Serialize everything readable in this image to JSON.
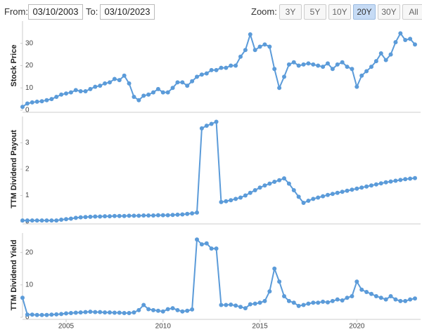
{
  "controls": {
    "from_label": "From:",
    "from_value": "03/10/2003",
    "to_label": "To:",
    "to_value": "03/10/2023",
    "zoom_label": "Zoom:",
    "zoom_buttons": [
      "3Y",
      "5Y",
      "10Y",
      "20Y",
      "30Y",
      "All"
    ],
    "zoom_active": 3
  },
  "chart_data": [
    {
      "type": "line",
      "ylabel": "Stock Price",
      "color": "#5b9bd9",
      "xlim": [
        2002.75,
        2023
      ],
      "ylim": [
        0,
        40
      ],
      "yticks": [
        0,
        10,
        20,
        30
      ],
      "x": [
        2002.75,
        2003,
        2003.25,
        2003.5,
        2003.75,
        2004,
        2004.25,
        2004.5,
        2004.75,
        2005,
        2005.25,
        2005.5,
        2005.75,
        2006,
        2006.25,
        2006.5,
        2006.75,
        2007,
        2007.25,
        2007.5,
        2007.75,
        2008,
        2008.25,
        2008.5,
        2008.75,
        2009,
        2009.25,
        2009.5,
        2009.75,
        2010,
        2010.25,
        2010.5,
        2010.75,
        2011,
        2011.25,
        2011.5,
        2011.75,
        2012,
        2012.25,
        2012.5,
        2012.75,
        2013,
        2013.25,
        2013.5,
        2013.75,
        2014,
        2014.25,
        2014.5,
        2014.75,
        2015,
        2015.25,
        2015.5,
        2015.75,
        2016,
        2016.25,
        2016.5,
        2016.75,
        2017,
        2017.25,
        2017.5,
        2017.75,
        2018,
        2018.25,
        2018.5,
        2018.75,
        2019,
        2019.25,
        2019.5,
        2019.75,
        2020,
        2020.25,
        2020.5,
        2020.75,
        2021,
        2021.25,
        2021.5,
        2021.75,
        2022,
        2022.25,
        2022.5,
        2022.75,
        2023
      ],
      "values": [
        1.5,
        3,
        3.5,
        3.8,
        4,
        4.5,
        5,
        6,
        7,
        7.5,
        8,
        9,
        8.5,
        8.5,
        9.5,
        10.5,
        11,
        12,
        12.5,
        14,
        13.5,
        15.5,
        12,
        6,
        4.5,
        6.5,
        7,
        8,
        9.5,
        8,
        8,
        10,
        12.5,
        12.5,
        11,
        13,
        15,
        16,
        16.5,
        18,
        18,
        19,
        19,
        20,
        20,
        24,
        27,
        34,
        27,
        28.5,
        29.5,
        28.5,
        18.5,
        10,
        15,
        20.5,
        21.5,
        20,
        20.5,
        21,
        20.5,
        20,
        19.5,
        21,
        18.5,
        20.5,
        21.5,
        19.5,
        18.5,
        10.5,
        15.5,
        17.5,
        19.5,
        22,
        25.5,
        22.5,
        25,
        30.5,
        34.5,
        31.5,
        32,
        29.5
      ]
    },
    {
      "type": "line",
      "ylabel": "TTM Dividend Payout",
      "color": "#5b9bd9",
      "xlim": [
        2002.75,
        2023
      ],
      "ylim": [
        0,
        4
      ],
      "yticks": [
        0,
        1,
        2,
        3
      ],
      "x": [
        2002.75,
        2003,
        2003.25,
        2003.5,
        2003.75,
        2004,
        2004.25,
        2004.5,
        2004.75,
        2005,
        2005.25,
        2005.5,
        2005.75,
        2006,
        2006.25,
        2006.5,
        2006.75,
        2007,
        2007.25,
        2007.5,
        2007.75,
        2008,
        2008.25,
        2008.5,
        2008.75,
        2009,
        2009.25,
        2009.5,
        2009.75,
        2010,
        2010.25,
        2010.5,
        2010.75,
        2011,
        2011.25,
        2011.5,
        2011.75,
        2012,
        2012.25,
        2012.5,
        2012.75,
        2013,
        2013.25,
        2013.5,
        2013.75,
        2014,
        2014.25,
        2014.5,
        2014.75,
        2015,
        2015.25,
        2015.5,
        2015.75,
        2016,
        2016.25,
        2016.5,
        2016.75,
        2017,
        2017.25,
        2017.5,
        2017.75,
        2018,
        2018.25,
        2018.5,
        2018.75,
        2019,
        2019.25,
        2019.5,
        2019.75,
        2020,
        2020.25,
        2020.5,
        2020.75,
        2021,
        2021.25,
        2021.5,
        2021.75,
        2022,
        2022.25,
        2022.5,
        2022.75,
        2023
      ],
      "values": [
        0.05,
        0.05,
        0.05,
        0.05,
        0.05,
        0.05,
        0.05,
        0.05,
        0.08,
        0.1,
        0.12,
        0.15,
        0.17,
        0.18,
        0.19,
        0.2,
        0.2,
        0.21,
        0.21,
        0.22,
        0.22,
        0.22,
        0.23,
        0.23,
        0.23,
        0.24,
        0.24,
        0.24,
        0.25,
        0.25,
        0.25,
        0.26,
        0.27,
        0.28,
        0.3,
        0.32,
        0.35,
        3.55,
        3.65,
        3.72,
        3.8,
        0.75,
        0.78,
        0.82,
        0.87,
        0.92,
        1.0,
        1.1,
        1.2,
        1.3,
        1.38,
        1.45,
        1.52,
        1.58,
        1.65,
        1.45,
        1.2,
        0.95,
        0.72,
        0.8,
        0.87,
        0.92,
        0.97,
        1.02,
        1.06,
        1.1,
        1.14,
        1.18,
        1.22,
        1.26,
        1.3,
        1.34,
        1.38,
        1.42,
        1.46,
        1.5,
        1.53,
        1.56,
        1.59,
        1.62,
        1.64,
        1.66
      ]
    },
    {
      "type": "line",
      "ylabel": "TTM Dividend Yield",
      "color": "#5b9bd9",
      "xlim": [
        2002.75,
        2023
      ],
      "ylim": [
        0,
        26
      ],
      "yticks": [
        0,
        10,
        20
      ],
      "xticks": [
        2005,
        2010,
        2015,
        2020
      ],
      "x": [
        2002.75,
        2003,
        2003.25,
        2003.5,
        2003.75,
        2004,
        2004.25,
        2004.5,
        2004.75,
        2005,
        2005.25,
        2005.5,
        2005.75,
        2006,
        2006.25,
        2006.5,
        2006.75,
        2007,
        2007.25,
        2007.5,
        2007.75,
        2008,
        2008.25,
        2008.5,
        2008.75,
        2009,
        2009.25,
        2009.5,
        2009.75,
        2010,
        2010.25,
        2010.5,
        2010.75,
        2011,
        2011.25,
        2011.5,
        2011.75,
        2012,
        2012.25,
        2012.5,
        2012.75,
        2013,
        2013.25,
        2013.5,
        2013.75,
        2014,
        2014.25,
        2014.5,
        2014.75,
        2015,
        2015.25,
        2015.5,
        2015.75,
        2016,
        2016.25,
        2016.5,
        2016.75,
        2017,
        2017.25,
        2017.5,
        2017.75,
        2018,
        2018.25,
        2018.5,
        2018.75,
        2019,
        2019.25,
        2019.5,
        2019.75,
        2020,
        2020.25,
        2020.5,
        2020.75,
        2021,
        2021.25,
        2021.5,
        2021.75,
        2022,
        2022.25,
        2022.5,
        2022.75,
        2023
      ],
      "values": [
        6,
        0.8,
        0.8,
        0.7,
        0.7,
        0.7,
        0.8,
        0.9,
        1,
        1.2,
        1.3,
        1.4,
        1.5,
        1.6,
        1.7,
        1.6,
        1.6,
        1.5,
        1.5,
        1.4,
        1.4,
        1.3,
        1.3,
        1.5,
        2.2,
        3.8,
        2.5,
        2.2,
        2,
        1.8,
        2.5,
        2.8,
        2.2,
        1.8,
        2,
        2.4,
        24,
        22.5,
        22.8,
        21.2,
        21.2,
        3.8,
        3.8,
        3.9,
        3.6,
        3.2,
        2.8,
        4,
        4.2,
        4.5,
        5,
        8,
        15,
        11,
        6.5,
        5,
        4.5,
        3.5,
        3.8,
        4.2,
        4.5,
        4.5,
        4.8,
        4.6,
        5,
        5.5,
        5.2,
        6,
        6.5,
        11,
        8.5,
        7.8,
        7.2,
        6.5,
        6,
        5.5,
        6.5,
        5.5,
        5,
        5,
        5.5,
        5.8
      ]
    }
  ]
}
